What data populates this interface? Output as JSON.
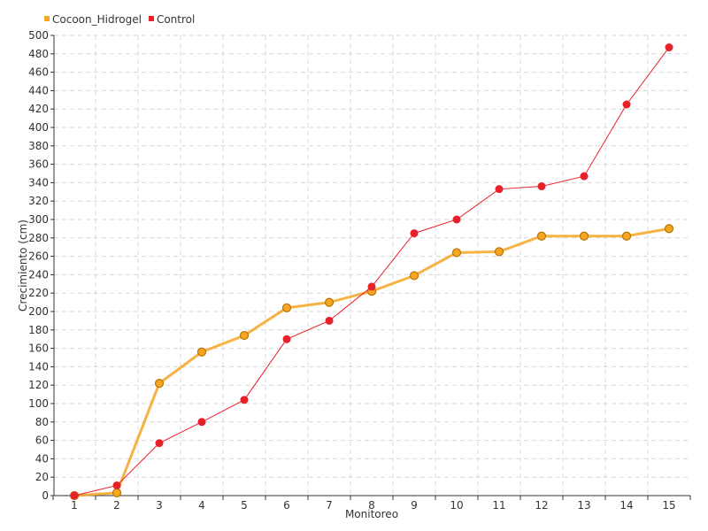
{
  "chart_data": {
    "type": "line",
    "xlabel": "Monitoreo",
    "ylabel": "Crecimiento (cm)",
    "x": [
      "1",
      "2",
      "3",
      "4",
      "5",
      "6",
      "7",
      "8",
      "9",
      "10",
      "11",
      "12",
      "13",
      "14",
      "15"
    ],
    "ylim": [
      0,
      500
    ],
    "ytick_step": 20,
    "grid": true,
    "legend_position": "top-left",
    "series": [
      {
        "name": "Cocoon_Hidrogel",
        "color": "#f5a623",
        "values": [
          0,
          3,
          122,
          156,
          174,
          204,
          210,
          222,
          239,
          264,
          265,
          282,
          282,
          282,
          290
        ]
      },
      {
        "name": "Control",
        "color": "#e8202a",
        "values": [
          0,
          11,
          57,
          80,
          104,
          170,
          190,
          227,
          285,
          300,
          333,
          336,
          347,
          425,
          487
        ]
      }
    ]
  }
}
